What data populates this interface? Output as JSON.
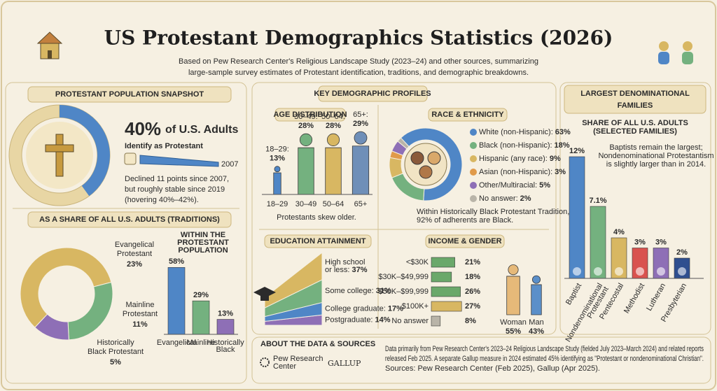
{
  "header": {
    "title": "US Protestant Demographics Statistics (2026)",
    "subtitle": [
      "Based on Pew Research Center's Religious Landscape Study (2023–24) and other sources, summarizing",
      "large-sample survey estimates of Protestant identification, traditions, and demographic breakdowns."
    ]
  },
  "snapshot": {
    "heading": "PROTESTANT POPULATION SNAPSHOT",
    "share": {
      "value": 40,
      "label": "40%"
    },
    "share_text": [
      "of U.S. Adults",
      "Identify as Protestant"
    ],
    "trend_year": "2007",
    "note": [
      "Declined 11 points since 2007,",
      "but roughly stable since 2019",
      "(hovering 40%–42%)."
    ],
    "color": "#4f86c6"
  },
  "traditions": {
    "heading": "AS A SHARE OF ALL U.S. ADULTS (TRADITIONS)",
    "type": "pie",
    "items": [
      {
        "name": [
          "Evangelical",
          "Protestant"
        ],
        "value": 23,
        "label": "23%",
        "color": "#d8b762"
      },
      {
        "name": [
          "Mainline",
          "Protestant"
        ],
        "value": 11,
        "label": "11%",
        "color": "#74b17f"
      },
      {
        "name": [
          "Historically",
          "Black Protestant"
        ],
        "value": 5,
        "label": "5%",
        "color": "#8e6fb6"
      }
    ]
  },
  "within": {
    "title": [
      "WITHIN THE",
      "PROTESTANT",
      "POPULATION"
    ],
    "type": "bar",
    "categories": [
      [
        "Evangelical"
      ],
      [
        "Mainline"
      ],
      [
        "Historically",
        "Black"
      ]
    ],
    "values": [
      58,
      29,
      13
    ],
    "value_labels": [
      "58%",
      "29%",
      "13%"
    ],
    "colors": [
      "#4f86c6",
      "#74b17f",
      "#8e6fb6"
    ]
  },
  "profiles_heading": "KEY DEMOGRAPHIC PROFILES",
  "age": {
    "heading": "AGE DISTRIBUTION",
    "type": "bar",
    "top_labels": [
      "18–29:",
      "30–49:",
      "50–64:",
      "65+:"
    ],
    "categories": [
      "18–29",
      "30–49",
      "50–64",
      "65+"
    ],
    "values": [
      13,
      28,
      28,
      29
    ],
    "value_labels": [
      "13%",
      "28%",
      "28%",
      "29%"
    ],
    "colors": [
      "#4f86c6",
      "#74b17f",
      "#d8b762",
      "#6f8fb8"
    ],
    "note": "Protestants skew older."
  },
  "race": {
    "heading": "RACE & ETHNICITY",
    "type": "pie",
    "categories": [
      "White (non-Hispanic):",
      "Black (non-Hispanic):",
      "Hispanic (any race):",
      "Asian (non-Hispanic):",
      "Other/Multiracial:",
      "No answer:"
    ],
    "values": [
      63,
      18,
      9,
      3,
      5,
      2
    ],
    "value_labels": [
      "63%",
      "18%",
      "9%",
      "3%",
      "5%",
      "2%"
    ],
    "colors": [
      "#4f86c6",
      "#74b17f",
      "#d8b762",
      "#e09a4a",
      "#8e6fb6",
      "#b9b4a8"
    ],
    "note": [
      "Within Historically Black Protestant Tradition,",
      "92% of adherents are Black."
    ]
  },
  "education": {
    "heading": "EDUCATION ATTAINMENT",
    "type": "area",
    "categories": [
      [
        "High school",
        "or less:"
      ],
      [
        "Some college:"
      ],
      [
        "College graduate:"
      ],
      [
        "Postgraduate:"
      ]
    ],
    "values": [
      37,
      31,
      17,
      14
    ],
    "value_labels": [
      "37%",
      "31%",
      "17%",
      "14%"
    ],
    "colors": [
      "#d8b762",
      "#74b17f",
      "#4f86c6",
      "#8e6fb6"
    ]
  },
  "income": {
    "heading": "INCOME & GENDER",
    "type": "bar",
    "categories": [
      "<$30K",
      "$30K–$49,999",
      "$50K–$99,999",
      "$100K+",
      "No answer"
    ],
    "values": [
      21,
      18,
      26,
      27,
      8
    ],
    "value_labels": [
      "21%",
      "18%",
      "26%",
      "27%",
      "8%"
    ],
    "colors": [
      "#6aa86a",
      "#6aa86a",
      "#6aa86a",
      "#d8b762",
      "#b9b4a8"
    ]
  },
  "gender": {
    "type": "bar",
    "categories": [
      "Woman",
      "Man"
    ],
    "values": [
      55,
      43
    ],
    "value_labels": [
      "55%",
      "43%"
    ],
    "colors": [
      "#e6b979",
      "#5b8fc9"
    ]
  },
  "denominations": {
    "heading": [
      "LARGEST DENOMINATIONAL",
      "FAMILIES"
    ],
    "subheading": [
      "SHARE OF ALL U.S. ADULTS",
      "(SELECTED FAMILIES)"
    ],
    "note": [
      "Baptists remain the largest;",
      "Nondenominational Protestantism",
      "is slightly larger than in 2014."
    ],
    "type": "bar",
    "categories": [
      [
        "Baptist"
      ],
      [
        "Nondenominational",
        "Protestant"
      ],
      [
        "Pentecostal"
      ],
      [
        "Methodist"
      ],
      [
        "Lutheran"
      ],
      [
        "Presbyterian"
      ]
    ],
    "values": [
      12,
      7.1,
      4,
      3,
      3,
      2
    ],
    "value_labels": [
      "12%",
      "7.1%",
      "4%",
      "3%",
      "3%",
      "2%"
    ],
    "colors": [
      "#4f86c6",
      "#74b17f",
      "#d8b762",
      "#d9534f",
      "#8e6fb6",
      "#2f4f8f"
    ]
  },
  "sources": {
    "heading": "ABOUT THE DATA & SOURCES",
    "logos": [
      [
        "Pew Research",
        "Center"
      ],
      [
        "GALLUP"
      ]
    ],
    "text": [
      "Data primarily from Pew Research Center's 2023–24 Religious Landscape Study (fielded July 2023–March 2024) and related reports",
      "released Feb 2025. A separate Gallup measure in 2024 estimated 45% identifying as \"Protestant or nondenominational Christian\".",
      "Sources: Pew Research Center (Feb 2025), Gallup (Apr 2025)."
    ]
  }
}
